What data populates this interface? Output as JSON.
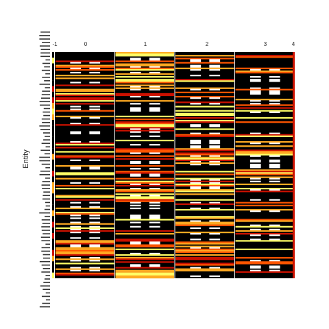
{
  "chart_data": {
    "type": "heatmap",
    "title": "",
    "xlabel": "",
    "ylabel": "Entity",
    "x_ticks": [
      -1,
      0,
      1,
      2,
      3,
      4
    ],
    "x_columns": [
      -0.5,
      0,
      0.5,
      1,
      1.5,
      2,
      2.5,
      3,
      3.5
    ],
    "xlim": [
      -1,
      4
    ],
    "row_count": 160,
    "colormap": [
      "#000000",
      "#cc1100",
      "#ff5500",
      "#ffaa22",
      "#ffff66",
      "#ffffff"
    ],
    "value_range": [
      0,
      1
    ],
    "grid": false,
    "legend": "none",
    "row_labels_note": "row tick labels are overlapping and illegible in the original",
    "column_groups": [
      {
        "x": 0,
        "pattern": "black/white striped with warm rows"
      },
      {
        "x": 1,
        "pattern": "black/white striped with warm rows"
      },
      {
        "x": 2,
        "pattern": "black/white striped with warm rows"
      },
      {
        "x": 3,
        "pattern": "black/white striped with warm rows"
      }
    ]
  },
  "colors": {
    "background": "#ffffff",
    "axis": "#222222",
    "low": "#000000",
    "high": "#ffffff"
  }
}
